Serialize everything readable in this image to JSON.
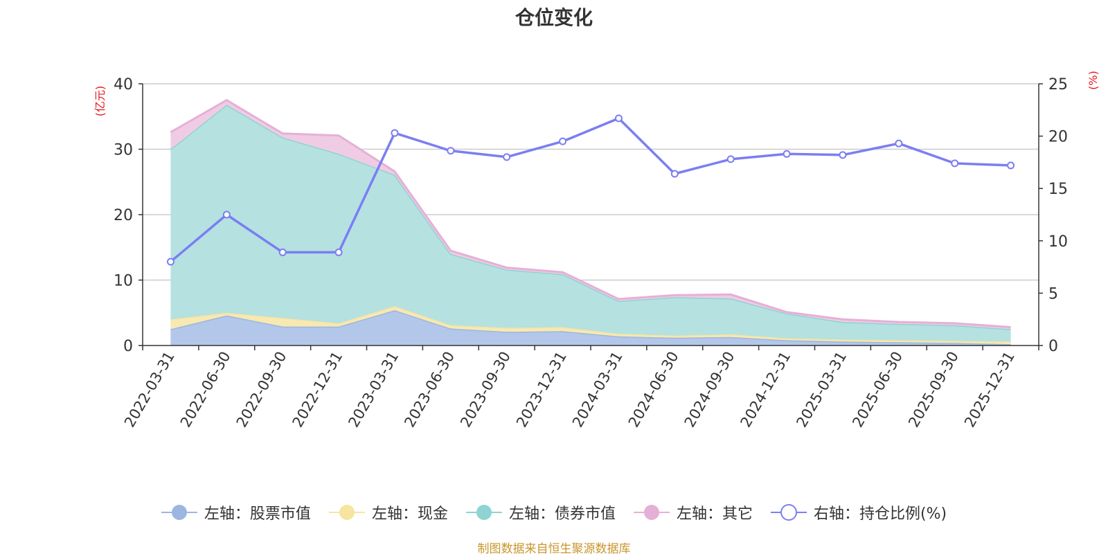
{
  "chart_data": {
    "type": "area",
    "title": "仓位变化",
    "left_axis_unit": "(亿元)",
    "right_axis_unit": "(%)",
    "left_ylim": [
      0,
      40
    ],
    "left_ticks": [
      "0",
      "10",
      "20",
      "30",
      "40"
    ],
    "right_ylim": [
      0,
      25
    ],
    "right_ticks": [
      "0",
      "5",
      "10",
      "15",
      "20",
      "25"
    ],
    "categories": [
      "2022-03-31",
      "2022-06-30",
      "2022-09-30",
      "2022-12-31",
      "2023-03-31",
      "2023-06-30",
      "2023-09-30",
      "2023-12-31",
      "2024-03-31",
      "2024-06-30",
      "2024-09-30",
      "2024-12-31",
      "2025-03-31",
      "2025-06-30",
      "2025-09-30",
      "2025-12-31"
    ],
    "stacked_series": [
      {
        "name": "左轴：股票市值",
        "color": "#9db6e0",
        "fill": "#b3c7ea",
        "values": [
          2.5,
          4.6,
          2.9,
          2.9,
          5.4,
          2.6,
          2.1,
          2.2,
          1.4,
          1.2,
          1.3,
          0.8,
          0.6,
          0.5,
          0.4,
          0.2
        ]
      },
      {
        "name": "左轴：现金",
        "color": "#f6e4a0",
        "fill": "#f7e9b1",
        "values": [
          1.5,
          0.4,
          1.3,
          0.5,
          0.6,
          0.5,
          0.6,
          0.6,
          0.4,
          0.3,
          0.4,
          0.3,
          0.3,
          0.3,
          0.3,
          0.4
        ]
      },
      {
        "name": "左轴：债券市值",
        "color": "#8fd3d3",
        "fill": "#b5e1e1",
        "values": [
          26.0,
          31.8,
          27.6,
          25.9,
          20.1,
          10.9,
          8.9,
          8.1,
          5.0,
          5.9,
          5.5,
          3.8,
          2.7,
          2.5,
          2.4,
          1.9
        ]
      },
      {
        "name": "左轴：其它",
        "color": "#e5b0d6",
        "fill": "#f0cce4",
        "values": [
          2.6,
          0.7,
          0.6,
          2.8,
          0.5,
          0.5,
          0.3,
          0.3,
          0.3,
          0.3,
          0.6,
          0.2,
          0.4,
          0.3,
          0.3,
          0.3
        ]
      }
    ],
    "line_series": {
      "name": "右轴：持仓比例(%)",
      "color": "#7b7ef2",
      "values": [
        8.0,
        12.5,
        8.9,
        8.9,
        20.3,
        18.6,
        18.0,
        19.5,
        21.7,
        16.4,
        17.8,
        18.3,
        18.2,
        19.3,
        17.4,
        17.2
      ]
    }
  },
  "source_text": "制图数据来自恒生聚源数据库"
}
